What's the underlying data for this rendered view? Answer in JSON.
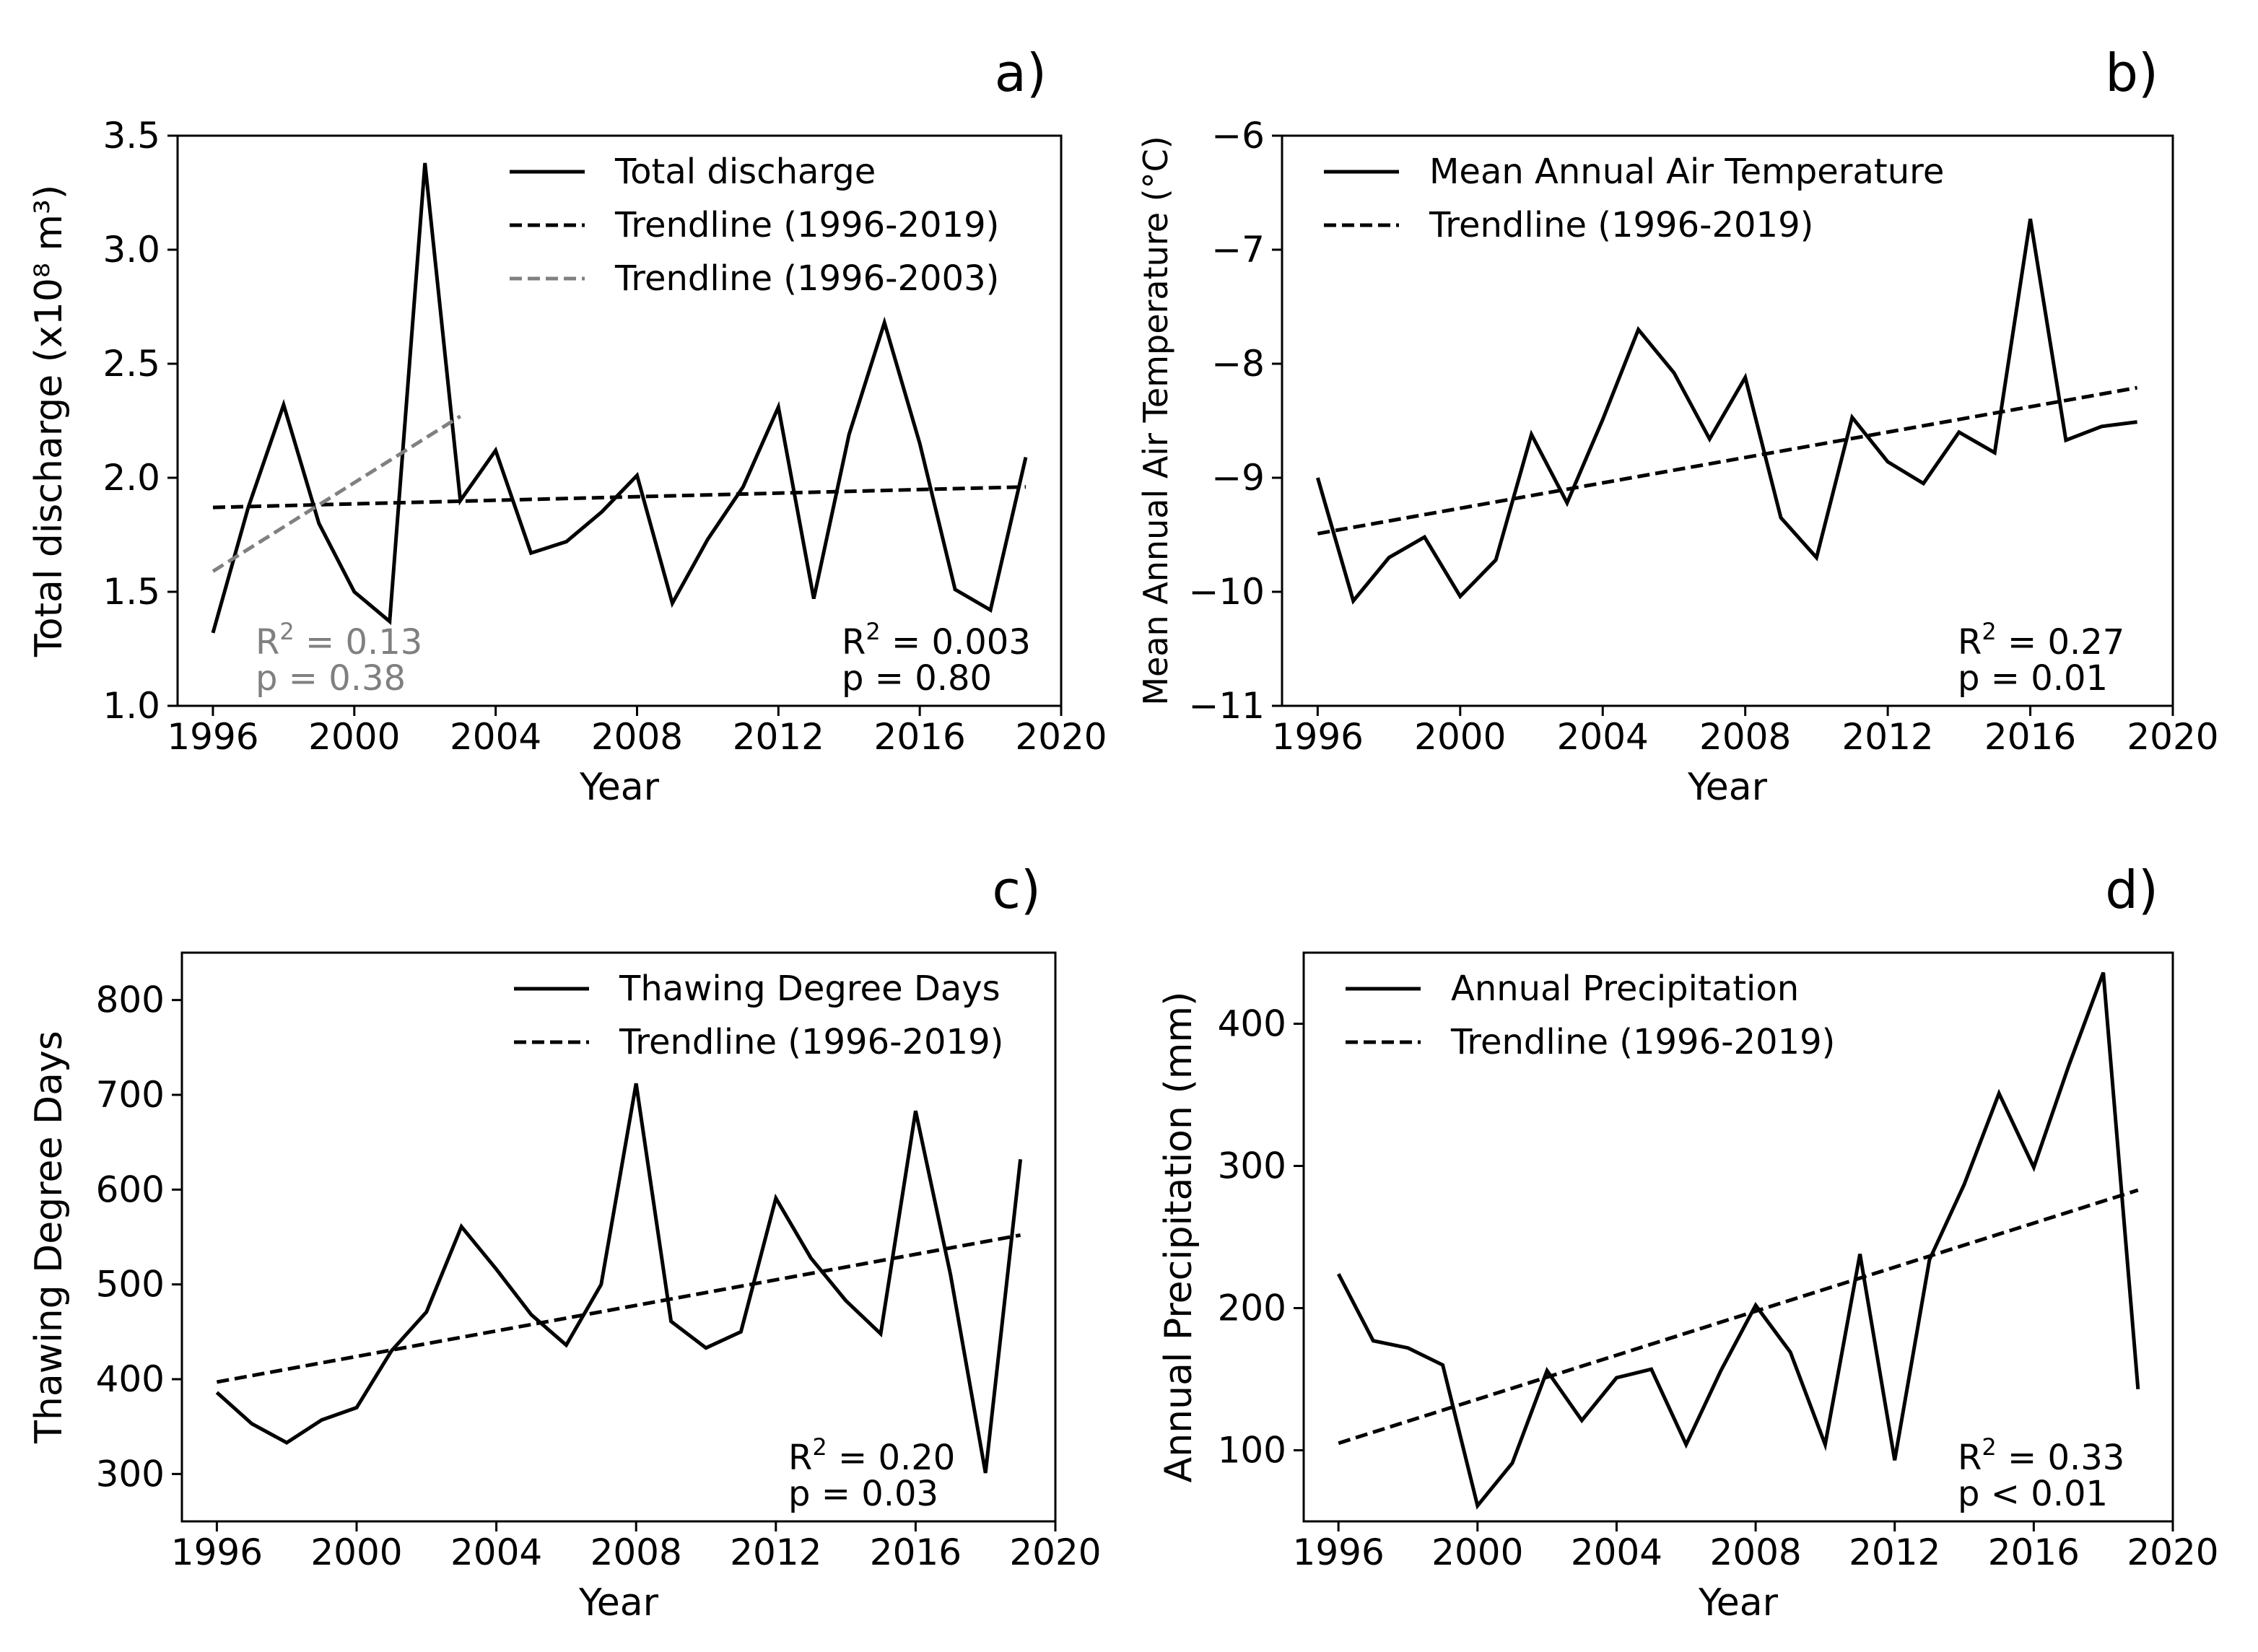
{
  "chart_data": [
    {
      "id": "a",
      "type": "line",
      "panel_label": "a)",
      "xlabel": "Year",
      "ylabel": "Total discharge (x10⁸ m³)",
      "xlim": [
        1995,
        2020
      ],
      "ylim": [
        1.0,
        3.5
      ],
      "xticks": [
        1996,
        2000,
        2004,
        2008,
        2012,
        2016,
        2020
      ],
      "yticks": [
        "1.0",
        "1.5",
        "2.0",
        "2.5",
        "3.0",
        "3.5"
      ],
      "series": [
        {
          "name": "Total discharge",
          "style": "solid",
          "color": "#000000",
          "x": [
            1996,
            1997,
            1998,
            1999,
            2000,
            2001,
            2002,
            2003,
            2004,
            2005,
            2006,
            2007,
            2008,
            2009,
            2010,
            2011,
            2012,
            2013,
            2014,
            2015,
            2016,
            2017,
            2018,
            2019
          ],
          "y": [
            1.32,
            1.87,
            2.32,
            1.8,
            1.5,
            1.37,
            3.38,
            1.9,
            2.12,
            1.67,
            1.72,
            1.85,
            2.01,
            1.45,
            1.73,
            1.96,
            2.31,
            1.47,
            2.19,
            2.68,
            2.15,
            1.51,
            1.42,
            2.09
          ]
        },
        {
          "name": "Trendline (1996-2019)",
          "style": "dashed",
          "color": "#000000",
          "x": [
            1996,
            2019
          ],
          "y": [
            1.87,
            1.96
          ]
        },
        {
          "name": "Trendline (1996-2003)",
          "style": "dashed",
          "color": "#808080",
          "x": [
            1996,
            2003
          ],
          "y": [
            1.59,
            2.27
          ]
        }
      ],
      "stats": [
        {
          "r2_label": "R",
          "r2_value": " = 0.13",
          "p": "p = 0.38",
          "color": "#808080",
          "position": "bottom-left"
        },
        {
          "r2_label": "R",
          "r2_value": " = 0.003",
          "p": "p = 0.80",
          "color": "#000000",
          "position": "bottom-right"
        }
      ]
    },
    {
      "id": "b",
      "type": "line",
      "panel_label": "b)",
      "xlabel": "Year",
      "ylabel": "Mean Annual Air Temperature (°C)",
      "xlim": [
        1995,
        2020
      ],
      "ylim": [
        -11,
        -6
      ],
      "xticks": [
        1996,
        2000,
        2004,
        2008,
        2012,
        2016,
        2020
      ],
      "yticks": [
        "−11",
        "−10",
        "−9",
        "−8",
        "−7",
        "−6"
      ],
      "series": [
        {
          "name": "Mean Annual Air Temperature",
          "style": "solid",
          "color": "#000000",
          "x": [
            1996,
            1997,
            1998,
            1999,
            2000,
            2001,
            2002,
            2003,
            2004,
            2005,
            2006,
            2007,
            2008,
            2009,
            2010,
            2011,
            2012,
            2013,
            2014,
            2015,
            2016,
            2017,
            2018,
            2019
          ],
          "y": [
            -9.0,
            -10.08,
            -9.7,
            -9.52,
            -10.04,
            -9.72,
            -8.62,
            -9.22,
            -8.49,
            -7.7,
            -8.08,
            -8.66,
            -8.12,
            -9.35,
            -9.7,
            -8.47,
            -8.86,
            -9.05,
            -8.6,
            -8.78,
            -6.73,
            -8.67,
            -8.55,
            -8.51
          ]
        },
        {
          "name": "Trendline (1996-2019)",
          "style": "dashed",
          "color": "#000000",
          "x": [
            1996,
            2019
          ],
          "y": [
            -9.49,
            -8.21
          ]
        }
      ],
      "stats": [
        {
          "r2_label": "R",
          "r2_value": " = 0.27",
          "p": "p = 0.01",
          "color": "#000000",
          "position": "bottom-right"
        }
      ]
    },
    {
      "id": "c",
      "type": "line",
      "panel_label": "c)",
      "xlabel": "Year",
      "ylabel": "Thawing Degree Days",
      "xlim": [
        1995,
        2020
      ],
      "ylim": [
        250,
        850
      ],
      "xticks": [
        1996,
        2000,
        2004,
        2008,
        2012,
        2016,
        2020
      ],
      "yticks": [
        "300",
        "400",
        "500",
        "600",
        "700",
        "800"
      ],
      "series": [
        {
          "name": "Thawing Degree Days",
          "style": "solid",
          "color": "#000000",
          "x": [
            1996,
            1997,
            1998,
            1999,
            2000,
            2001,
            2002,
            2003,
            2004,
            2005,
            2006,
            2007,
            2008,
            2009,
            2010,
            2011,
            2012,
            2013,
            2014,
            2015,
            2016,
            2017,
            2018,
            2019
          ],
          "y": [
            386,
            353,
            333,
            357,
            370,
            430,
            471,
            561,
            516,
            468,
            436,
            500,
            712,
            461,
            433,
            450,
            591,
            528,
            483,
            448,
            683,
            510,
            301,
            632
          ]
        },
        {
          "name": "Trendline (1996-2019)",
          "style": "dashed",
          "color": "#000000",
          "x": [
            1996,
            2019
          ],
          "y": [
            397,
            552
          ]
        }
      ],
      "stats": [
        {
          "r2_label": "R",
          "r2_value": " = 0.20",
          "p": "p = 0.03",
          "color": "#000000",
          "position": "bottom-right"
        }
      ]
    },
    {
      "id": "d",
      "type": "line",
      "panel_label": "d)",
      "xlabel": "Year",
      "ylabel": "Annual Precipitation (mm)",
      "xlim": [
        1995,
        2020
      ],
      "ylim": [
        50,
        450
      ],
      "xticks": [
        1996,
        2000,
        2004,
        2008,
        2012,
        2016,
        2020
      ],
      "yticks": [
        "100",
        "200",
        "300",
        "400"
      ],
      "series": [
        {
          "name": "Annual Precipitation",
          "style": "solid",
          "color": "#000000",
          "x": [
            1996,
            1997,
            1998,
            1999,
            2000,
            2001,
            2002,
            2003,
            2004,
            2005,
            2006,
            2007,
            2008,
            2009,
            2010,
            2011,
            2012,
            2013,
            2014,
            2015,
            2016,
            2017,
            2018,
            2019
          ],
          "y": [
            224,
            177,
            172,
            160,
            61,
            91,
            156,
            121,
            151,
            157,
            104,
            156,
            202,
            169,
            104,
            238,
            93,
            234,
            287,
            351,
            299,
            370,
            436,
            143
          ]
        },
        {
          "name": "Trendline (1996-2019)",
          "style": "dashed",
          "color": "#000000",
          "x": [
            1996,
            2019
          ],
          "y": [
            105,
            283
          ]
        }
      ],
      "stats": [
        {
          "r2_label": "R",
          "r2_value": " = 0.33",
          "p": "p < 0.01",
          "color": "#000000",
          "position": "bottom-right"
        }
      ]
    }
  ]
}
